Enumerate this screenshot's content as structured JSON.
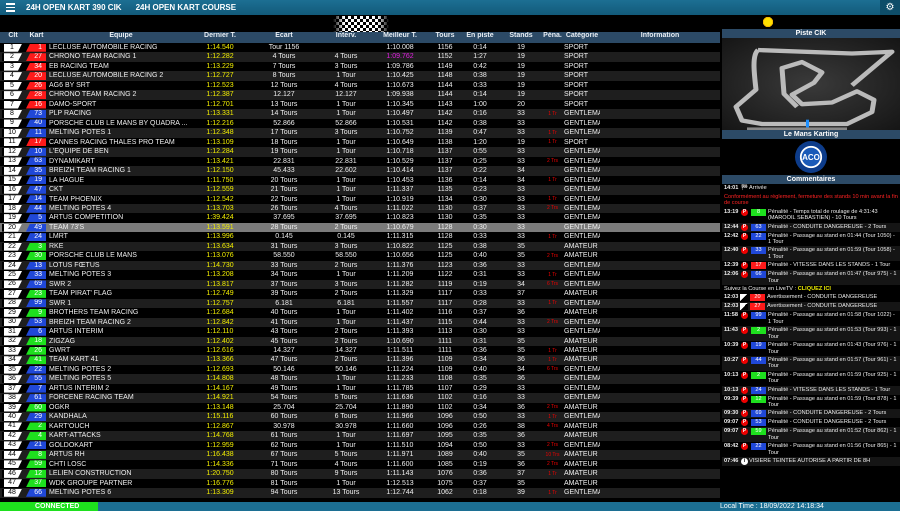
{
  "header": {
    "title1": "24H OPEN KART 390 CIK",
    "title2": "24H OPEN KART COURSE",
    "menu_icon": "hamburger-icon",
    "settings_icon": "gear-icon"
  },
  "colors": {
    "r": "#ff1a1a",
    "b": "#2048d8",
    "g": "#1ee01e"
  },
  "table": {
    "columns": [
      "Clt",
      "Kart",
      "Equipe",
      "Dernier T.",
      "Ecart",
      "Interv.",
      "Meilleur T.",
      "Tours",
      "En piste",
      "Stands",
      "Péna.",
      "Catégorie",
      "Information"
    ],
    "highlight_row": 20,
    "best_overall": "1:09.762",
    "rows": [
      [
        "1",
        "1",
        "r",
        "LECLUSE AUTOMOBILE RACING",
        "1:14.540",
        "Tour 1156",
        "",
        "1:10.008",
        "1156",
        "0:14",
        "19",
        "",
        "SPORT"
      ],
      [
        "2",
        "27",
        "r",
        "CHRONO TEAM RACING 1",
        "1:12.282",
        "4 Tours",
        "4 Tours",
        "1:09.762",
        "1152",
        "1:27",
        "19",
        "",
        "SPORT"
      ],
      [
        "3",
        "34",
        "r",
        "EB RACING TEAM",
        "1:13.229",
        "7 Tours",
        "3 Tours",
        "1:09.786",
        "1149",
        "0:42",
        "19",
        "",
        "SPORT"
      ],
      [
        "4",
        "20",
        "r",
        "LECLUSE AUTOMOBILE RACING 2",
        "1:12.727",
        "8 Tours",
        "1 Tour",
        "1:10.425",
        "1148",
        "0:38",
        "19",
        "",
        "SPORT"
      ],
      [
        "5",
        "26",
        "r",
        "AG6 BY SRT",
        "1:12.523",
        "12 Tours",
        "4 Tours",
        "1:10.673",
        "1144",
        "0:33",
        "19",
        "",
        "SPORT"
      ],
      [
        "6",
        "28",
        "r",
        "CHRONO TEAM RACING 2",
        "1:12.387",
        "12.127",
        "12.127",
        "1:09.938",
        "1144",
        "0:14",
        "19",
        "",
        "SPORT"
      ],
      [
        "7",
        "16",
        "r",
        "DAMO-SPORT",
        "1:12.701",
        "13 Tours",
        "1 Tour",
        "1:10.345",
        "1143",
        "1:00",
        "20",
        "",
        "SPORT"
      ],
      [
        "8",
        "73",
        "b",
        "PLP RACING",
        "1:13.331",
        "14 Tours",
        "1 Tour",
        "1:10.497",
        "1142",
        "0:16",
        "33",
        "1 Tr",
        "GENTLEMAN"
      ],
      [
        "9",
        "40",
        "b",
        "PORSCHE CLUB LE MANS BY QUADRA ...",
        "1:12.216",
        "52.866",
        "52.866",
        "1:10.531",
        "1142",
        "0:38",
        "33",
        "",
        "GENTLEMAN"
      ],
      [
        "10",
        "11",
        "b",
        "MELTING POTES 1",
        "1:12.348",
        "17 Tours",
        "3 Tours",
        "1:10.752",
        "1139",
        "0:47",
        "33",
        "1 Tr",
        "GENTLEMAN"
      ],
      [
        "11",
        "17",
        "r",
        "CANNES RACING THALES PRO TEAM",
        "1:13.109",
        "18 Tours",
        "1 Tour",
        "1:10.649",
        "1138",
        "1:20",
        "19",
        "1 Tr",
        "SPORT"
      ],
      [
        "12",
        "10",
        "b",
        "L'EQUIPE DE BEN",
        "1:12.284",
        "19 Tours",
        "1 Tour",
        "1:10.718",
        "1137",
        "0:55",
        "33",
        "",
        "GENTLEMAN"
      ],
      [
        "13",
        "63",
        "b",
        "DYNAMIKART",
        "1:13.421",
        "22.831",
        "22.831",
        "1:10.529",
        "1137",
        "0:25",
        "33",
        "2 Trs",
        "GENTLEMAN"
      ],
      [
        "14",
        "35",
        "b",
        "BREIZH TEAM RACING 1",
        "1:12.150",
        "45.433",
        "22.602",
        "1:10.414",
        "1137",
        "0:22",
        "34",
        "",
        "GENTLEMAN"
      ],
      [
        "15",
        "19",
        "b",
        "LA HAGUE",
        "1:11.750",
        "20 Tours",
        "1 Tour",
        "1:10.453",
        "1136",
        "0:14",
        "34",
        "1 Tr",
        "GENTLEMAN"
      ],
      [
        "16",
        "47",
        "b",
        "CKT",
        "1:12.559",
        "21 Tours",
        "1 Tour",
        "1:11.337",
        "1135",
        "0:23",
        "33",
        "",
        "GENTLEMAN"
      ],
      [
        "17",
        "14",
        "b",
        "TEAM PHOENIX",
        "1:12.542",
        "22 Tours",
        "1 Tour",
        "1:10.919",
        "1134",
        "0:30",
        "33",
        "1 Tr",
        "GENTLEMAN"
      ],
      [
        "18",
        "44",
        "b",
        "MELTING POTES 4",
        "1:13.703",
        "26 Tours",
        "4 Tours",
        "1:11.022",
        "1130",
        "0:37",
        "33",
        "2 Trs",
        "GENTLEMAN"
      ],
      [
        "19",
        "5",
        "b",
        "ARTUS COMPETITION",
        "1:39.424",
        "37.695",
        "37.695",
        "1:10.823",
        "1130",
        "0:35",
        "33",
        "",
        "GENTLEMAN"
      ],
      [
        "20",
        "49",
        "b",
        "TEAM 73'S",
        "1:13.591",
        "28 Tours",
        "2 Tours",
        "1:10.679",
        "1128",
        "0:30",
        "33",
        "",
        "GENTLEMAN"
      ],
      [
        "21",
        "24",
        "b",
        "LMRT",
        "1:13.996",
        "0.145",
        "0.145",
        "1:11.315",
        "1128",
        "0:33",
        "33",
        "1 Tr",
        "GENTLEMAN"
      ],
      [
        "22",
        "3",
        "g",
        "RKE",
        "1:13.634",
        "31 Tours",
        "3 Tours",
        "1:10.822",
        "1125",
        "0:38",
        "35",
        "",
        "AMATEUR"
      ],
      [
        "23",
        "30",
        "g",
        "PORSCHE CLUB LE MANS",
        "1:13.076",
        "58.550",
        "58.550",
        "1:10.656",
        "1125",
        "0:40",
        "35",
        "2 Trs",
        "AMATEUR"
      ],
      [
        "24",
        "13",
        "b",
        "LOTUS FŒTUS",
        "1:14.730",
        "33 Tours",
        "2 Tours",
        "1:11.376",
        "1123",
        "0:36",
        "33",
        "",
        "GENTLEMAN"
      ],
      [
        "25",
        "33",
        "b",
        "MELTING POTES 3",
        "1:13.208",
        "34 Tours",
        "1 Tour",
        "1:11.209",
        "1122",
        "0:31",
        "33",
        "1 Tr",
        "GENTLEMAN"
      ],
      [
        "26",
        "69",
        "b",
        "SWR 2",
        "1:13.817",
        "37 Tours",
        "3 Tours",
        "1:11.282",
        "1119",
        "0:19",
        "34",
        "6 Trs",
        "GENTLEMAN"
      ],
      [
        "27",
        "23",
        "g",
        "TEAM PIRAT' FLAG",
        "1:12.749",
        "39 Tours",
        "2 Tours",
        "1:11.329",
        "1117",
        "0:33",
        "37",
        "",
        "AMATEUR"
      ],
      [
        "28",
        "99",
        "b",
        "SWR 1",
        "1:12.757",
        "6.181",
        "6.181",
        "1:11.557",
        "1117",
        "0:28",
        "33",
        "1 Tr",
        "GENTLEMAN"
      ],
      [
        "29",
        "9",
        "g",
        "BROTHERS TEAM RACING",
        "1:12.684",
        "40 Tours",
        "1 Tour",
        "1:11.402",
        "1116",
        "0:37",
        "36",
        "",
        "AMATEUR"
      ],
      [
        "30",
        "53",
        "b",
        "BREIZH TEAM RACING 2",
        "1:12.842",
        "41 Tours",
        "1 Tour",
        "1:11.437",
        "1115",
        "0:44",
        "33",
        "2 Trs",
        "GENTLEMAN"
      ],
      [
        "31",
        "6",
        "b",
        "ARTUS INTERIM",
        "1:12.110",
        "43 Tours",
        "2 Tours",
        "1:11.393",
        "1113",
        "0:30",
        "33",
        "",
        "GENTLEMAN"
      ],
      [
        "32",
        "18",
        "g",
        "ZIGZAG",
        "1:12.402",
        "45 Tours",
        "2 Tours",
        "1:10.690",
        "1111",
        "0:31",
        "35",
        "",
        "AMATEUR"
      ],
      [
        "33",
        "26",
        "g",
        "GWRT",
        "1:12.616",
        "14.327",
        "14.327",
        "1:11.511",
        "1111",
        "0:36",
        "35",
        "1 Tr",
        "AMATEUR"
      ],
      [
        "34",
        "41",
        "g",
        "TEAM KART 41",
        "1:13.366",
        "47 Tours",
        "2 Tours",
        "1:11.396",
        "1109",
        "0:34",
        "36",
        "1 Tr",
        "AMATEUR"
      ],
      [
        "35",
        "22",
        "b",
        "MELTING POTES 2",
        "1:12.693",
        "50.146",
        "50.146",
        "1:11.224",
        "1109",
        "0:40",
        "34",
        "6 Trs",
        "GENTLEMAN"
      ],
      [
        "36",
        "55",
        "b",
        "MELTING POTES 5",
        "1:14.808",
        "48 Tours",
        "1 Tour",
        "1:11.233",
        "1108",
        "0:35",
        "36",
        "",
        "GENTLEMAN"
      ],
      [
        "37",
        "7",
        "b",
        "ARTUS INTERIM 2",
        "1:14.167",
        "49 Tours",
        "1 Tour",
        "1:11.785",
        "1107",
        "0:29",
        "33",
        "",
        "GENTLEMAN"
      ],
      [
        "38",
        "61",
        "b",
        "FORCENE RACING TEAM",
        "1:14.921",
        "54 Tours",
        "5 Tours",
        "1:11.636",
        "1102",
        "0:16",
        "33",
        "",
        "GENTLEMAN"
      ],
      [
        "39",
        "60",
        "g",
        "OGKR",
        "1:13.148",
        "25.704",
        "25.704",
        "1:11.890",
        "1102",
        "0:34",
        "36",
        "2 Trs",
        "AMATEUR"
      ],
      [
        "40",
        "29",
        "b",
        "KANDHALA",
        "1:15.116",
        "60 Tours",
        "6 Tours",
        "1:11.966",
        "1096",
        "0:50",
        "33",
        "1 Tr",
        "GENTLEMAN"
      ],
      [
        "41",
        "2",
        "g",
        "KART'OUCH",
        "1:12.867",
        "30.978",
        "30.978",
        "1:11.660",
        "1096",
        "0:26",
        "38",
        "4 Trs",
        "AMATEUR"
      ],
      [
        "42",
        "4",
        "g",
        "KART-ATTACKS",
        "1:14.768",
        "61 Tours",
        "1 Tour",
        "1:11.697",
        "1095",
        "0:35",
        "36",
        "",
        "AMATEUR"
      ],
      [
        "43",
        "21",
        "b",
        "GOLDOKART",
        "1:12.959",
        "62 Tours",
        "1 Tour",
        "1:11.510",
        "1094",
        "0:50",
        "33",
        "2 Trs",
        "GENTLEMAN"
      ],
      [
        "44",
        "8",
        "g",
        "ARTUS RH",
        "1:16.438",
        "67 Tours",
        "5 Tours",
        "1:11.971",
        "1089",
        "0:40",
        "35",
        "10 Trs",
        "AMATEUR"
      ],
      [
        "45",
        "59",
        "g",
        "CHTI LOSC",
        "1:14.336",
        "71 Tours",
        "4 Tours",
        "1:11.600",
        "1085",
        "0:19",
        "36",
        "2 Trs",
        "AMATEUR"
      ],
      [
        "46",
        "12",
        "g",
        "LELIEN CONSTRUCTION",
        "1:20.750",
        "80 Tours",
        "9 Tours",
        "1:11.143",
        "1076",
        "0:36",
        "37",
        "1 Tr",
        "AMATEUR"
      ],
      [
        "47",
        "37",
        "g",
        "WDK GROUPE PARTNER",
        "1:16.776",
        "81 Tours",
        "1 Tour",
        "1:12.513",
        "1075",
        "0:37",
        "35",
        "",
        "AMATEUR"
      ],
      [
        "48",
        "66",
        "b",
        "MELTING POTES 6",
        "1:13.309",
        "94 Tours",
        "13 Tours",
        "1:12.744",
        "1062",
        "0:18",
        "39",
        "1 Tr",
        "GENTLEMAN"
      ]
    ]
  },
  "side": {
    "weather_icon": "sun-icon",
    "track_title": "Piste CIK",
    "circuit_title": "Le Mans Karting",
    "logo_text": "ACO",
    "comments_title": "Commentaires",
    "first": {
      "time": "14:01",
      "icon": "checkered-flag-icon",
      "text": "Arrivée"
    },
    "notice": "Conformément au règlement, fermeture des stands 10 min avant la fin de course",
    "livetv": {
      "text": "Suivez la Course en LiveTV :",
      "link": "CLIQUEZ ICI"
    },
    "comments_a": [
      {
        "time": "13:19",
        "icon": "P",
        "kart": "8",
        "color": "g",
        "text": "Pénalité - Temps total de roulage de 4:31:43 (MAROOIL SEBASTIEN) - 10 Tours"
      },
      {
        "time": "12:44",
        "icon": "P",
        "kart": "63",
        "color": "b",
        "text": "Pénalité - CONDUITE DANGEREUSE - 2 Tours"
      },
      {
        "time": "12:42",
        "icon": "P",
        "kart": "22",
        "color": "b",
        "text": "Pénalité - Passage au stand en 01:44 (Tour 1050) - 1 Tour"
      },
      {
        "time": "12:40",
        "icon": "P",
        "kart": "33",
        "color": "b",
        "text": "Pénalité - Passage au stand en 01:59 (Tour 1058) - 1 Tour"
      },
      {
        "time": "12:39",
        "icon": "P",
        "kart": "17",
        "color": "r",
        "text": "Pénalité - VITESSE DANS LES STANDS - 1 Tour"
      },
      {
        "time": "12:06",
        "icon": "P",
        "kart": "66",
        "color": "b",
        "text": "Pénalité - Passage au stand en 01:47 (Tour 975) - 1 Tour"
      }
    ],
    "comments_b": [
      {
        "time": "12:03",
        "icon": "F",
        "kart": "20",
        "color": "r",
        "text": "Avertissement - CONDUITE DANGEREUSE"
      },
      {
        "time": "12:03",
        "icon": "F",
        "kart": "27",
        "color": "r",
        "text": "Avertissement - CONDUITE DANGEREUSE"
      },
      {
        "time": "11:58",
        "icon": "P",
        "kart": "99",
        "color": "b",
        "text": "Pénalité - Passage au stand en 01:58 (Tour 1022) - 1 Tour"
      },
      {
        "time": "11:43",
        "icon": "P",
        "kart": "2",
        "color": "g",
        "text": "Pénalité - Passage au stand en 01:53 (Tour 993) - 1 Tour"
      },
      {
        "time": "10:39",
        "icon": "P",
        "kart": "19",
        "color": "b",
        "text": "Pénalité - Passage au stand en 01:43 (Tour 976) - 1 Tour"
      },
      {
        "time": "10:27",
        "icon": "P",
        "kart": "44",
        "color": "b",
        "text": "Pénalité - Passage au stand en 01:57 (Tour 961) - 1 Tour"
      },
      {
        "time": "10:13",
        "icon": "P",
        "kart": "2",
        "color": "g",
        "text": "Pénalité - Passage au stand en 01:59 (Tour 925) - 1 Tour"
      },
      {
        "time": "10:13",
        "icon": "P",
        "kart": "24",
        "color": "b",
        "text": "Pénalité - VITESSE DANS LES STANDS - 1 Tour"
      },
      {
        "time": "09:39",
        "icon": "P",
        "kart": "12",
        "color": "g",
        "text": "Pénalité - Passage au stand en 01:59 (Tour 878) - 1 Tour"
      },
      {
        "time": "09:30",
        "icon": "P",
        "kart": "69",
        "color": "b",
        "text": "Pénalité - CONDUITE DANGEREUSE - 2 Tours"
      },
      {
        "time": "09:07",
        "icon": "P",
        "kart": "53",
        "color": "b",
        "text": "Pénalité - CONDUITE DANGEREUSE - 2 Tours"
      },
      {
        "time": "09:07",
        "icon": "P",
        "kart": "59",
        "color": "g",
        "text": "Pénalité - Passage au stand en 01:52 (Tour 862) - 1 Tour"
      },
      {
        "time": "08:42",
        "icon": "P",
        "kart": "22",
        "color": "b",
        "text": "Pénalité - Passage au stand en 01:56 (Tour 865) - 1 Tour"
      },
      {
        "time": "07:46",
        "icon": "i",
        "kart": "",
        "color": "",
        "text": "VISIERE TEINTEE AUTORISE A PARTIR DE 8H"
      }
    ]
  },
  "footer": {
    "status": "CONNECTED",
    "local_time": "Local Time : 18/09/2022 14:18:34"
  }
}
